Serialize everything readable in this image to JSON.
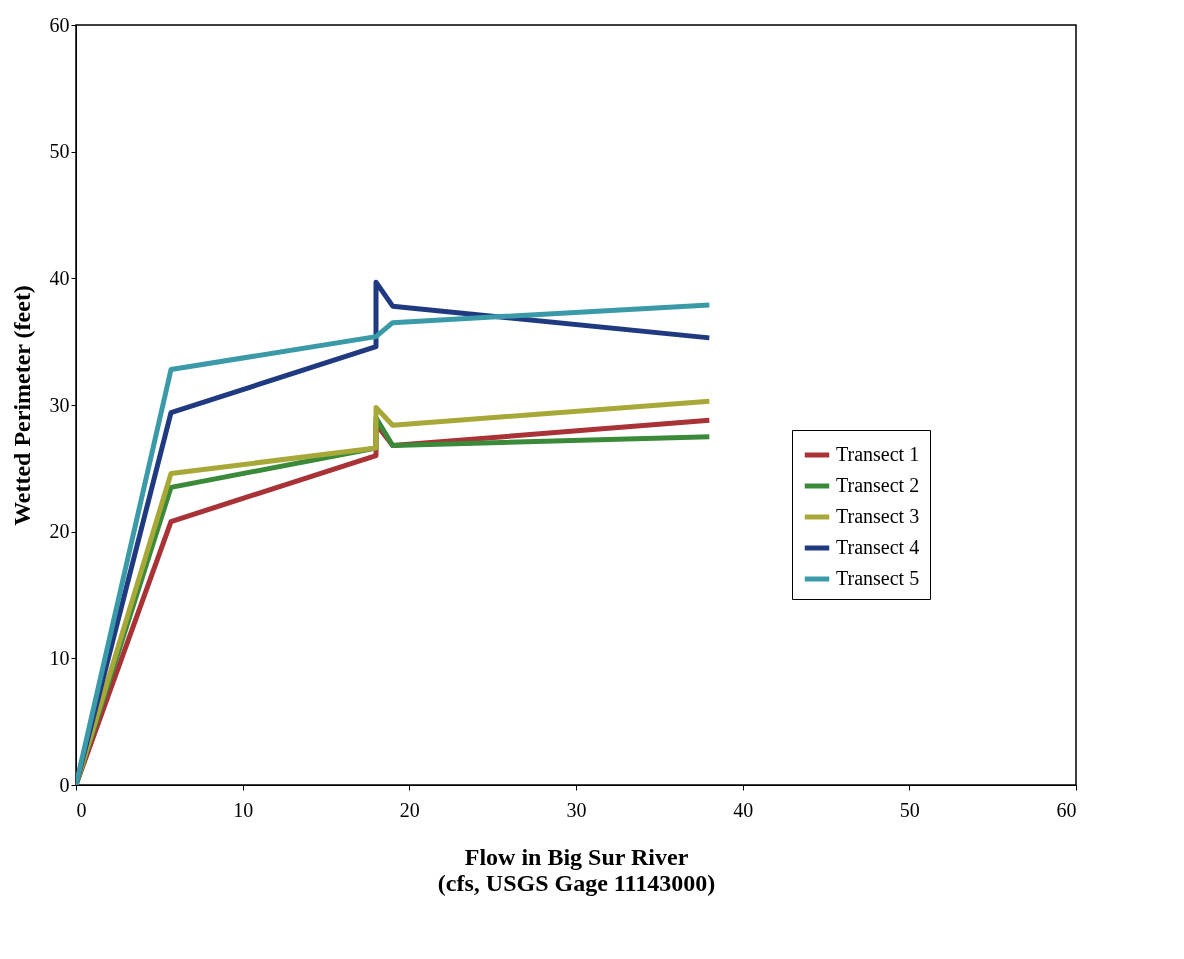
{
  "chart_data": {
    "type": "line",
    "xlabel": "Flow in Big Sur River\n(cfs, USGS Gage 11143000)",
    "ylabel": "Wetted Perimeter (feet)",
    "x": [
      0,
      5.7,
      18,
      18,
      19,
      38
    ],
    "series": [
      {
        "name": "Transect 1",
        "color": "#a83236",
        "values": [
          0,
          20.8,
          26,
          28.5,
          26.8,
          28.8
        ]
      },
      {
        "name": "Transect 2",
        "color": "#3a8a3a",
        "values": [
          0,
          23.5,
          26.6,
          29,
          26.8,
          27.5
        ]
      },
      {
        "name": "Transect 3",
        "color": "#a8a838",
        "values": [
          0,
          24.6,
          26.6,
          29.8,
          28.4,
          30.3
        ]
      },
      {
        "name": "Transect 4",
        "color": "#1f3a80",
        "values": [
          0,
          29.4,
          34.6,
          39.7,
          37.8,
          35.3
        ]
      },
      {
        "name": "Transect 5",
        "color": "#3a9aa8",
        "x": [
          0,
          5.7,
          18,
          19,
          38
        ],
        "values": [
          0,
          32.8,
          35.4,
          36.5,
          37.9
        ]
      }
    ],
    "xlim": [
      0,
      60
    ],
    "xticks": [
      0,
      10,
      20,
      30,
      40,
      50,
      60
    ],
    "ylim": [
      0,
      60
    ],
    "yticks": [
      0,
      10,
      20,
      30,
      40,
      50,
      60
    ],
    "grid": false,
    "legend": "right",
    "marker": "none",
    "line_style": "solid"
  }
}
